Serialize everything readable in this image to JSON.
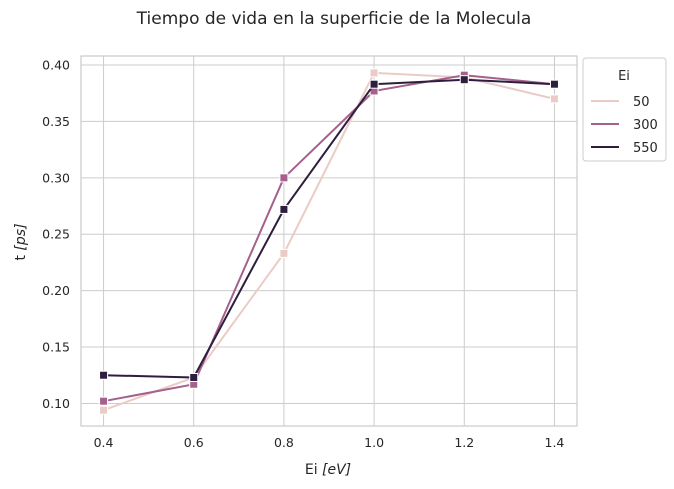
{
  "chart_data": {
    "type": "line",
    "title": "Tiempo de vida en la superficie de la Molecula",
    "xlabel_prefix": "Ei ",
    "xlabel_unit": "[eV]",
    "ylabel_prefix": "t ",
    "ylabel_unit": "[ps]",
    "x": [
      0.4,
      0.6,
      0.8,
      1.0,
      1.2,
      1.4
    ],
    "x_ticks": [
      "0.4",
      "0.6",
      "0.8",
      "1.0",
      "1.2",
      "1.4"
    ],
    "y_ticks": [
      "0.10",
      "0.15",
      "0.20",
      "0.25",
      "0.30",
      "0.35",
      "0.40"
    ],
    "xlim": [
      0.35,
      1.45
    ],
    "ylim": [
      0.08,
      0.408
    ],
    "grid": true,
    "legend_title": "Ei",
    "legend_position": "outside-top-right",
    "series": [
      {
        "name": "50",
        "color": "#ebcbc5",
        "values": [
          0.094,
          0.123,
          0.233,
          0.393,
          0.389,
          0.37
        ]
      },
      {
        "name": "300",
        "color": "#a6608c",
        "values": [
          0.102,
          0.117,
          0.3,
          0.377,
          0.391,
          0.383
        ]
      },
      {
        "name": "550",
        "color": "#2d1e3e",
        "values": [
          0.125,
          0.123,
          0.272,
          0.383,
          0.387,
          0.383
        ]
      }
    ]
  }
}
